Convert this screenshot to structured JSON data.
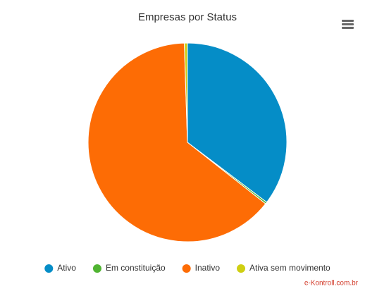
{
  "chart_data": {
    "type": "pie",
    "title": "Empresas por Status",
    "categories": [
      "Ativo",
      "Em constituição",
      "Inativo",
      "Ativa sem movimento"
    ],
    "values": [
      35.3,
      0.3,
      63.9,
      0.5
    ],
    "colors": [
      "#058dc7",
      "#50b432",
      "#fd6c05",
      "#cfcf12"
    ],
    "legend": "bottom",
    "credits": "e-Kontroll.com.br"
  }
}
